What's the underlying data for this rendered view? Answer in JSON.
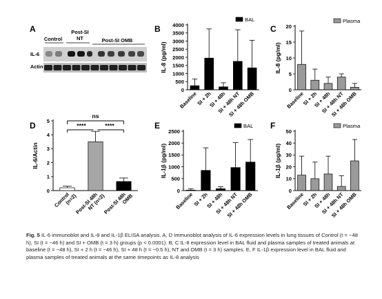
{
  "panel_letters": [
    "A",
    "B",
    "C",
    "D",
    "E",
    "F"
  ],
  "blot": {
    "groups": [
      "Control",
      "Post-SI NT",
      "Post-SI OMB"
    ],
    "group_line1": [
      "Control",
      "Post-SI",
      "Post-SI OMB"
    ],
    "group_line2": [
      "",
      "NT",
      ""
    ],
    "rows": [
      "IL-6",
      "Actin"
    ]
  },
  "colors": {
    "bal": "#000000",
    "plasma": "#9a9a9a",
    "control": "#ffffff",
    "nt": "#a6a6a6",
    "omb": "#000000"
  },
  "chart_data": [
    {
      "panel": "B",
      "type": "bar",
      "categories": [
        "Baseline",
        "SI + 2h",
        "SI + 48h",
        "SI + 48h NT",
        "SI + 48h OMB"
      ],
      "series": [
        {
          "name": "BAL",
          "values": [
            250,
            1950,
            180,
            1750,
            1350
          ],
          "errors": [
            420,
            1800,
            250,
            1950,
            1700
          ]
        }
      ],
      "ylabel": "IL-8 (pg/ml)",
      "ylim": [
        0,
        4000
      ],
      "yticks": [
        0,
        500,
        1000,
        1500,
        2000,
        2500,
        3000,
        3500,
        4000
      ],
      "legend": "top-right"
    },
    {
      "panel": "C",
      "type": "bar",
      "categories": [
        "Baseline",
        "SI + 2h",
        "SI + 48h",
        "SI + 48h NT",
        "SI + 48h OMB"
      ],
      "series": [
        {
          "name": "Plasma",
          "values": [
            8,
            3,
            2,
            4,
            0.8
          ],
          "errors": [
            10.5,
            3.5,
            2,
            1,
            1.2
          ]
        }
      ],
      "ylabel": "IL-8 (pg/ml)",
      "ylim": [
        0,
        20
      ],
      "yticks": [
        0,
        5,
        10,
        15,
        20
      ],
      "legend": "top-right"
    },
    {
      "panel": "D",
      "type": "bar",
      "categories": [
        "Control (n=2)",
        "Post-SI 48h NT (n=2)",
        "Post-SI 48h OMB"
      ],
      "cat_line1": [
        "Control",
        "Post-SI 48h",
        "Post-SI 48h"
      ],
      "cat_line2": [
        "(n=2)",
        "NT (n=2)",
        "OMB"
      ],
      "series": [
        {
          "values": [
            0.2,
            3.5,
            0.65
          ],
          "errors": [
            0.12,
            0.75,
            0.25
          ]
        }
      ],
      "ylabel": "IL-6/Actin",
      "ylim": [
        0,
        5
      ],
      "yticks": [
        0,
        1,
        2,
        3,
        4,
        5
      ],
      "annotations": [
        "ns",
        "****",
        "****"
      ]
    },
    {
      "panel": "E",
      "type": "bar",
      "categories": [
        "Baseline",
        "SI + 2h",
        "SI + 48h",
        "SI + 48h NT",
        "SI + 48h OMB"
      ],
      "series": [
        {
          "name": "BAL",
          "values": [
            20,
            850,
            80,
            970,
            1200
          ],
          "errors": [
            60,
            950,
            80,
            1050,
            950
          ]
        }
      ],
      "ylabel": "IL-1β (pg/ml)",
      "ylim": [
        0,
        2500
      ],
      "yticks": [
        0,
        500,
        1000,
        1500,
        2000,
        2500
      ],
      "legend": "top-right"
    },
    {
      "panel": "F",
      "type": "bar",
      "categories": [
        "Baseline",
        "SI + 2h",
        "SI + 48h",
        "SI + 48h NT",
        "SI + 48h OMB"
      ],
      "series": [
        {
          "name": "Plasma",
          "values": [
            13,
            10,
            14,
            3.5,
            25
          ],
          "errors": [
            16,
            14,
            15,
            9,
            18
          ]
        }
      ],
      "ylabel": "IL-1β (pg/ml)",
      "ylim": [
        0,
        50
      ],
      "yticks": [
        0,
        10,
        20,
        30,
        40,
        50
      ],
      "legend": "top-right"
    }
  ],
  "caption": {
    "label": "Fig. 5",
    "text": " IL-6 immunoblot and IL-8 and IL-1β ELISA analysis. A, D Immunoblot analysis of IL-6 expression levels in lung tissues of Control (t = −48 h), SI (t = −46 h) and SI + OMB (t = 3 h) groups (p < 0.0001). B, C IL-8 expression level in BAL fluid and plasma samples of treated animals at baseline (t = −48 h), SI + 2 h (t = −46 h), SI + 48 h (t = −0.5 h), NT and OMB (t = 3 h) samples. E, F IL-1β expression level in BAL fluid and plasma samples of treated animals at the same timepoints as IL-8 analysis"
  }
}
